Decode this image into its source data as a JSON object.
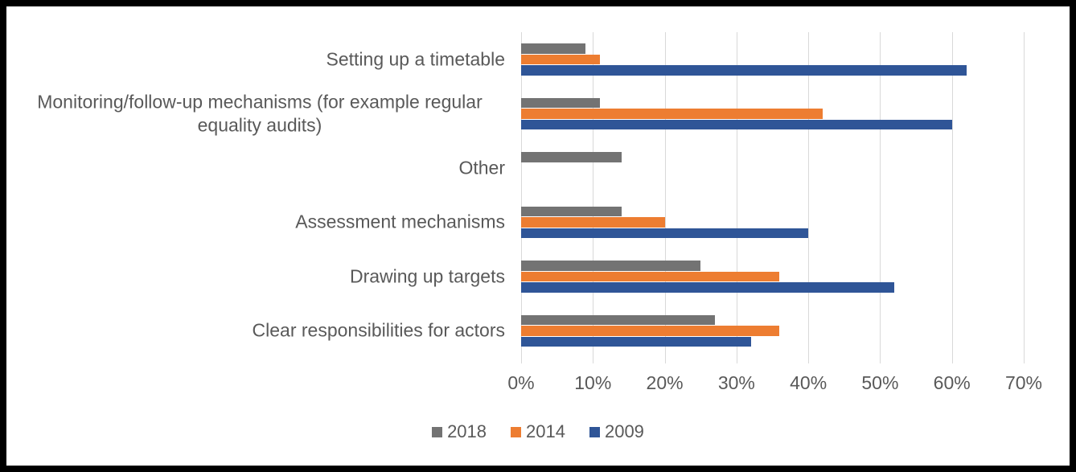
{
  "chart_data": {
    "type": "bar",
    "orientation": "horizontal",
    "title": "",
    "categories": [
      "Setting up a timetable",
      "Monitoring/follow-up mechanisms (for example regular equality audits)",
      "Other",
      "Assessment mechanisms",
      "Drawing up targets",
      "Clear responsibilities for actors"
    ],
    "series": [
      {
        "name": "2018",
        "color": "#737373",
        "values": [
          9,
          11,
          14,
          14,
          25,
          27
        ]
      },
      {
        "name": "2014",
        "color": "#ED7D31",
        "values": [
          11,
          42,
          0,
          20,
          36,
          36
        ]
      },
      {
        "name": "2009",
        "color": "#2F5597",
        "values": [
          62,
          60,
          0,
          40,
          52,
          32
        ]
      }
    ],
    "x_ticks": [
      "0%",
      "10%",
      "20%",
      "30%",
      "40%",
      "50%",
      "60%",
      "70%"
    ],
    "xlim": [
      0,
      70
    ],
    "grid": true,
    "legend_position": "bottom"
  },
  "colors": {
    "background": "#FFFFFF",
    "frame_border": "#000000",
    "gridline": "#D9D9D9",
    "text": "#595959"
  }
}
